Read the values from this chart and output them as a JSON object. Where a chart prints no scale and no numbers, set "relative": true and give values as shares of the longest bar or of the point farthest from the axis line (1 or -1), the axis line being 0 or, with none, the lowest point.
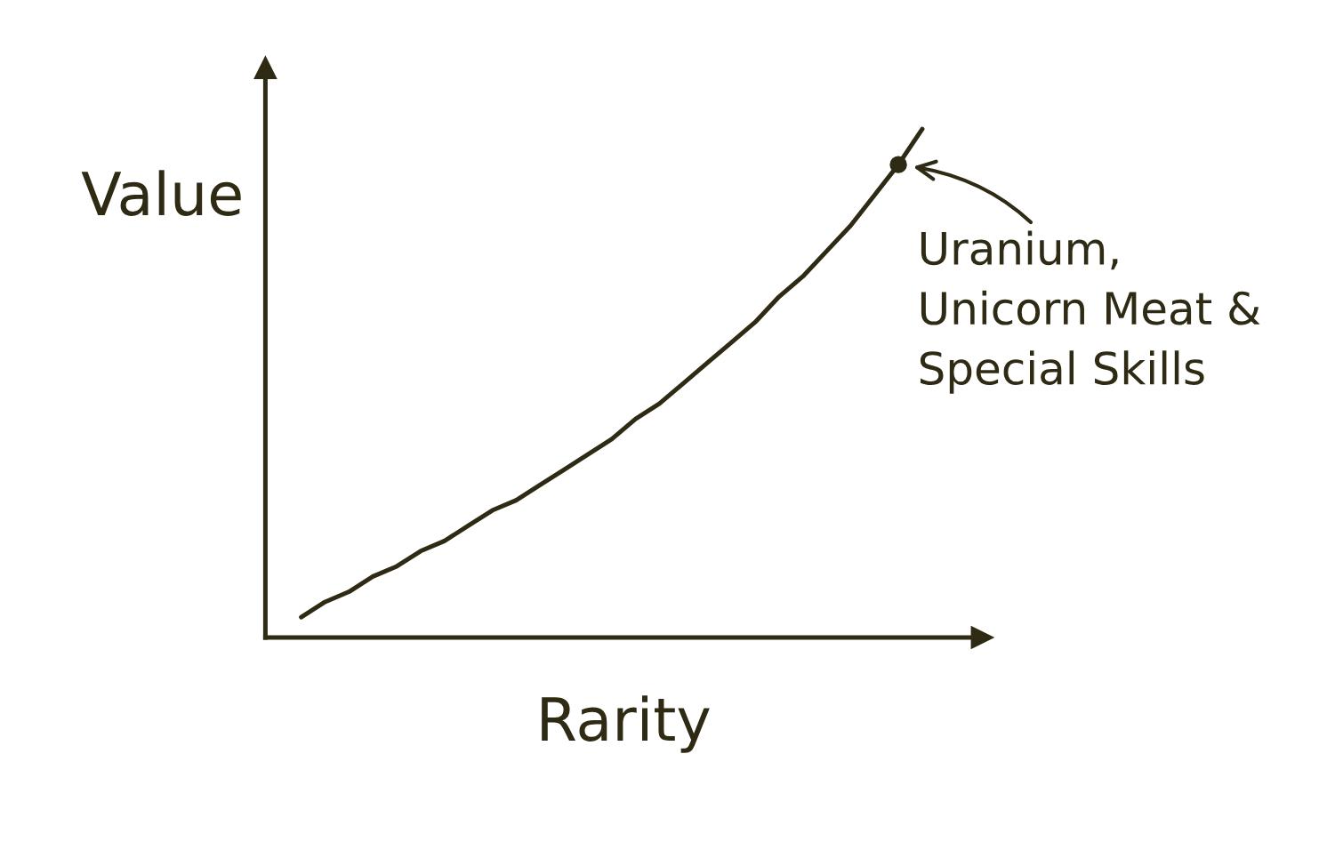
{
  "chart_data": {
    "type": "line",
    "relative": true,
    "xlabel": "Rarity",
    "ylabel": "Value",
    "categories": [
      null,
      null,
      null,
      null,
      null,
      null,
      null,
      null,
      null,
      null,
      null,
      null,
      null,
      null,
      null,
      null,
      null,
      null,
      null,
      null,
      null,
      null,
      null,
      null,
      null,
      null,
      null
    ],
    "series": [
      {
        "color": "#2e2a14",
        "values": [
          0.04,
          0.07,
          0.09,
          0.12,
          0.14,
          0.17,
          0.19,
          0.22,
          0.25,
          0.27,
          0.3,
          0.33,
          0.36,
          0.39,
          0.43,
          0.46,
          0.5,
          0.54,
          0.58,
          0.62,
          0.67,
          0.71,
          0.76,
          0.81,
          0.87,
          0.93,
          1.0
        ]
      }
    ],
    "annotations": [
      "Uranium,\nUnicorn Meat &\nSpecial Skills"
    ],
    "marker": "none",
    "line_style": "solid",
    "grid": false,
    "legend": false
  }
}
